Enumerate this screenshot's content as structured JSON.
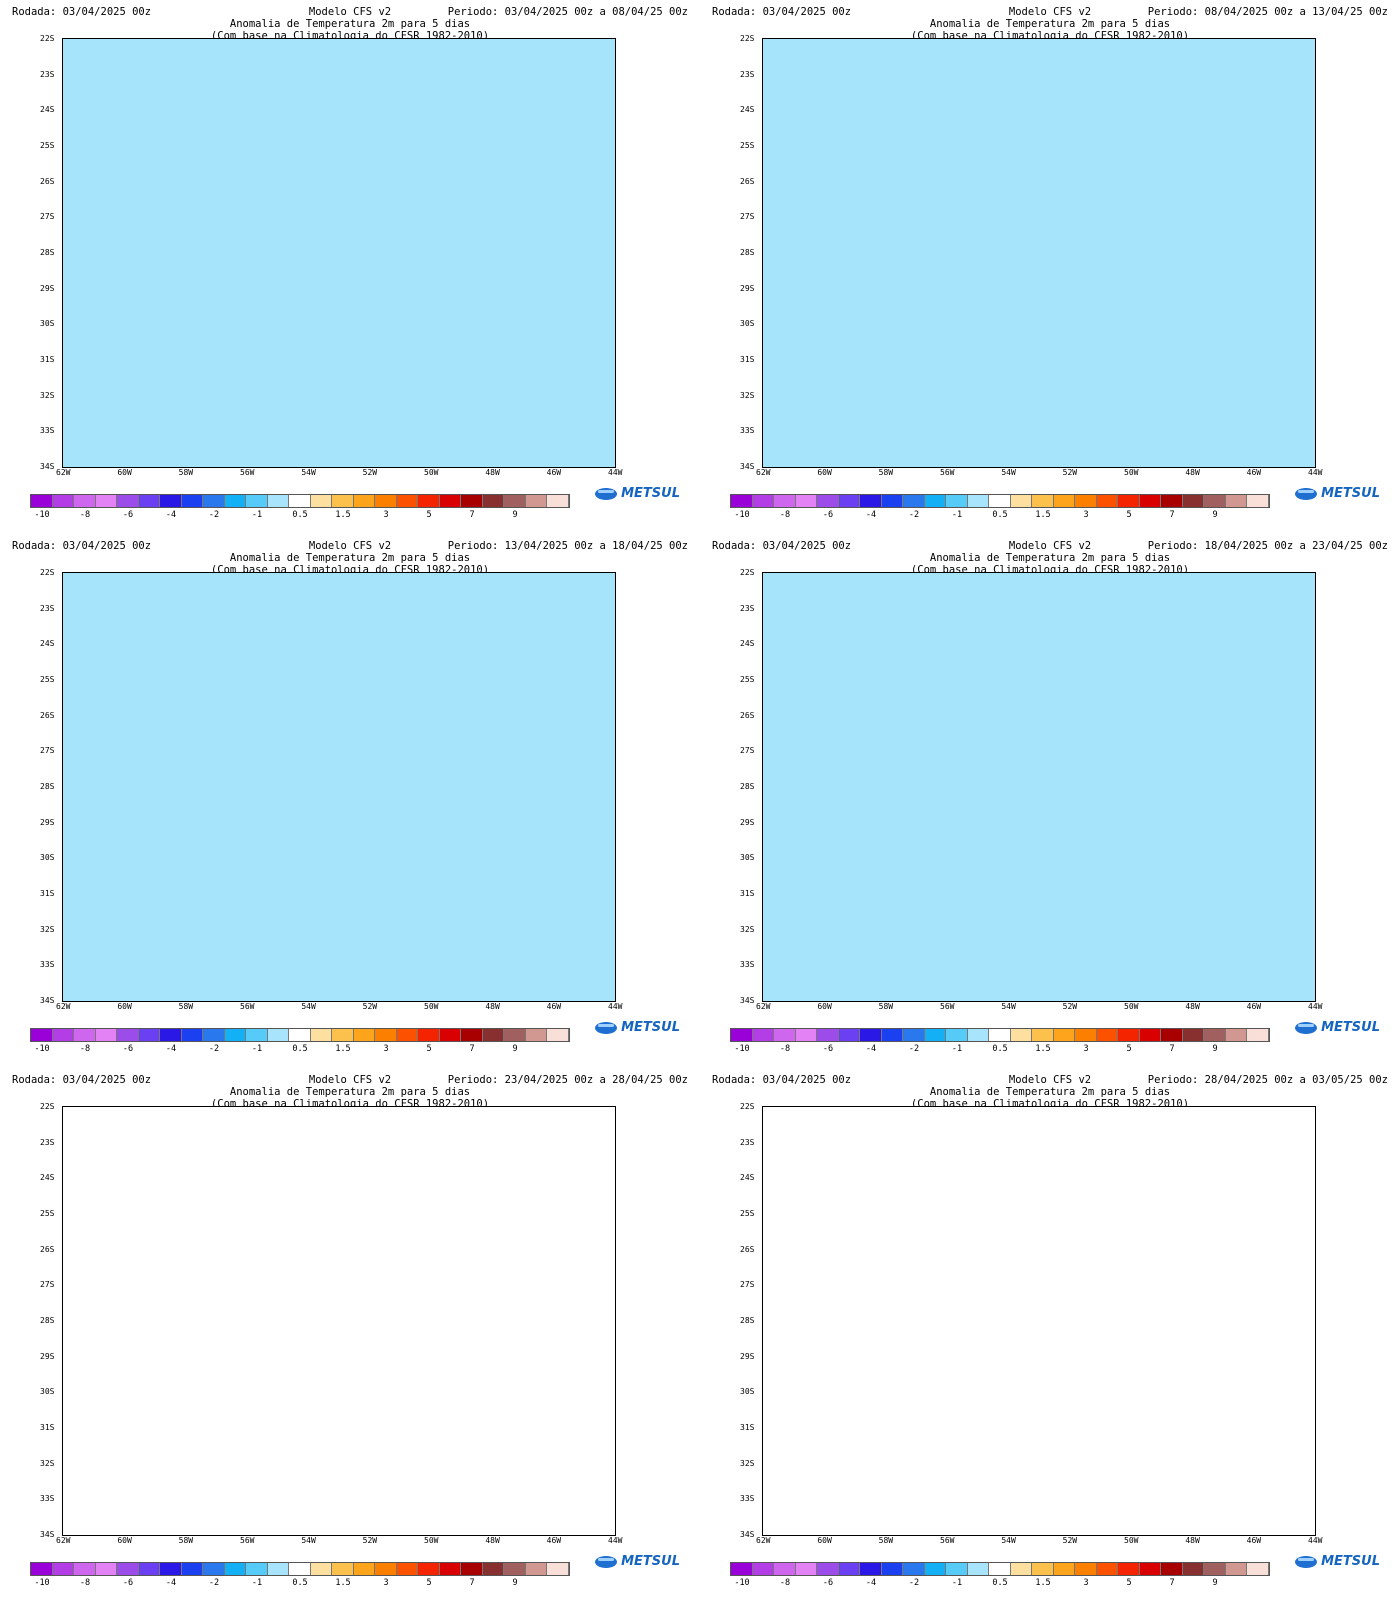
{
  "colors": {
    "scale": [
      "#9a00d8",
      "#b43ee6",
      "#ce66ee",
      "#e282f4",
      "#9c4ce8",
      "#6a40f2",
      "#2a18e6",
      "#1a40f0",
      "#2a78ee",
      "#14b0f6",
      "#56cbf8",
      "#a8e4fc",
      "#ffffff",
      "#fde0a0",
      "#fcc04c",
      "#fca41c",
      "#fc8000",
      "#fc5200",
      "#f42400",
      "#d80000",
      "#a80000",
      "#883030",
      "#a06060",
      "#d09890",
      "#f8e0d8"
    ],
    "neg_deep": "#9f48ee",
    "neg_pink": "#ec84ee",
    "neg_blue": "#1a30e8",
    "neg_mid": "#2e6ff0",
    "neg_light": "#18b8f8",
    "neg_pale": "#a6e4fc",
    "pos_pale": "#fde0a0",
    "pos_light": "#fcc04c",
    "pos_mid": "#fca41c",
    "pos_orange": "#fc8000",
    "pos_red": "#f45000"
  },
  "icons": [
    "metsul-logo"
  ],
  "colorbar": {
    "labels": [
      "-10",
      "-8",
      "-6",
      "-4",
      "-2",
      "-1",
      "0.5",
      "1.5",
      "3",
      "5",
      "7",
      "9"
    ]
  },
  "ticks": {
    "lat": [
      "22S",
      "23S",
      "24S",
      "25S",
      "26S",
      "27S",
      "28S",
      "29S",
      "30S",
      "31S",
      "32S",
      "33S",
      "34S"
    ],
    "lon": [
      "62W",
      "60W",
      "58W",
      "56W",
      "54W",
      "52W",
      "50W",
      "48W",
      "46W",
      "44W"
    ]
  },
  "panels": [
    {
      "rodada": "Rodada: 03/04/2025 00z",
      "modelo": "Modelo CFS v2",
      "periodo": "Periodo: 03/04/2025 00z a 08/04/25 00z",
      "title": "Anomalia de Temperatura 2m para 5 dias",
      "subtitle": "(Com base na Climatologia do CFSR 1982-2010)",
      "logo": "METSUL"
    },
    {
      "rodada": "Rodada: 03/04/2025 00z",
      "modelo": "Modelo CFS v2",
      "periodo": "Periodo: 08/04/2025 00z a 13/04/25 00z",
      "title": "Anomalia de Temperatura 2m para 5 dias",
      "subtitle": "(Com base na Climatologia do CFSR 1982-2010)",
      "logo": "METSUL"
    },
    {
      "rodada": "Rodada: 03/04/2025 00z",
      "modelo": "Modelo CFS v2",
      "periodo": "Periodo: 13/04/2025 00z a 18/04/25 00z",
      "title": "Anomalia de Temperatura 2m para 5 dias",
      "subtitle": "(Com base na Climatologia do CFSR 1982-2010)",
      "logo": "METSUL"
    },
    {
      "rodada": "Rodada: 03/04/2025 00z",
      "modelo": "Modelo CFS v2",
      "periodo": "Periodo: 18/04/2025 00z a 23/04/25 00z",
      "title": "Anomalia de Temperatura 2m para 5 dias",
      "subtitle": "(Com base na Climatologia do CFSR 1982-2010)",
      "logo": "METSUL"
    },
    {
      "rodada": "Rodada: 03/04/2025 00z",
      "modelo": "Modelo CFS v2",
      "periodo": "Periodo: 23/04/2025 00z a 28/04/25 00z",
      "title": "Anomalia de Temperatura 2m para 5 dias",
      "subtitle": "(Com base na Climatologia do CFSR 1982-2010)",
      "logo": "METSUL"
    },
    {
      "rodada": "Rodada: 03/04/2025 00z",
      "modelo": "Modelo CFS v2",
      "periodo": "Periodo: 28/04/2025 00z a 03/05/25 00z",
      "title": "Anomalia de Temperatura 2m para 5 dias",
      "subtitle": "(Com base na Climatologia do CFSR 1982-2010)",
      "logo": "METSUL"
    }
  ]
}
